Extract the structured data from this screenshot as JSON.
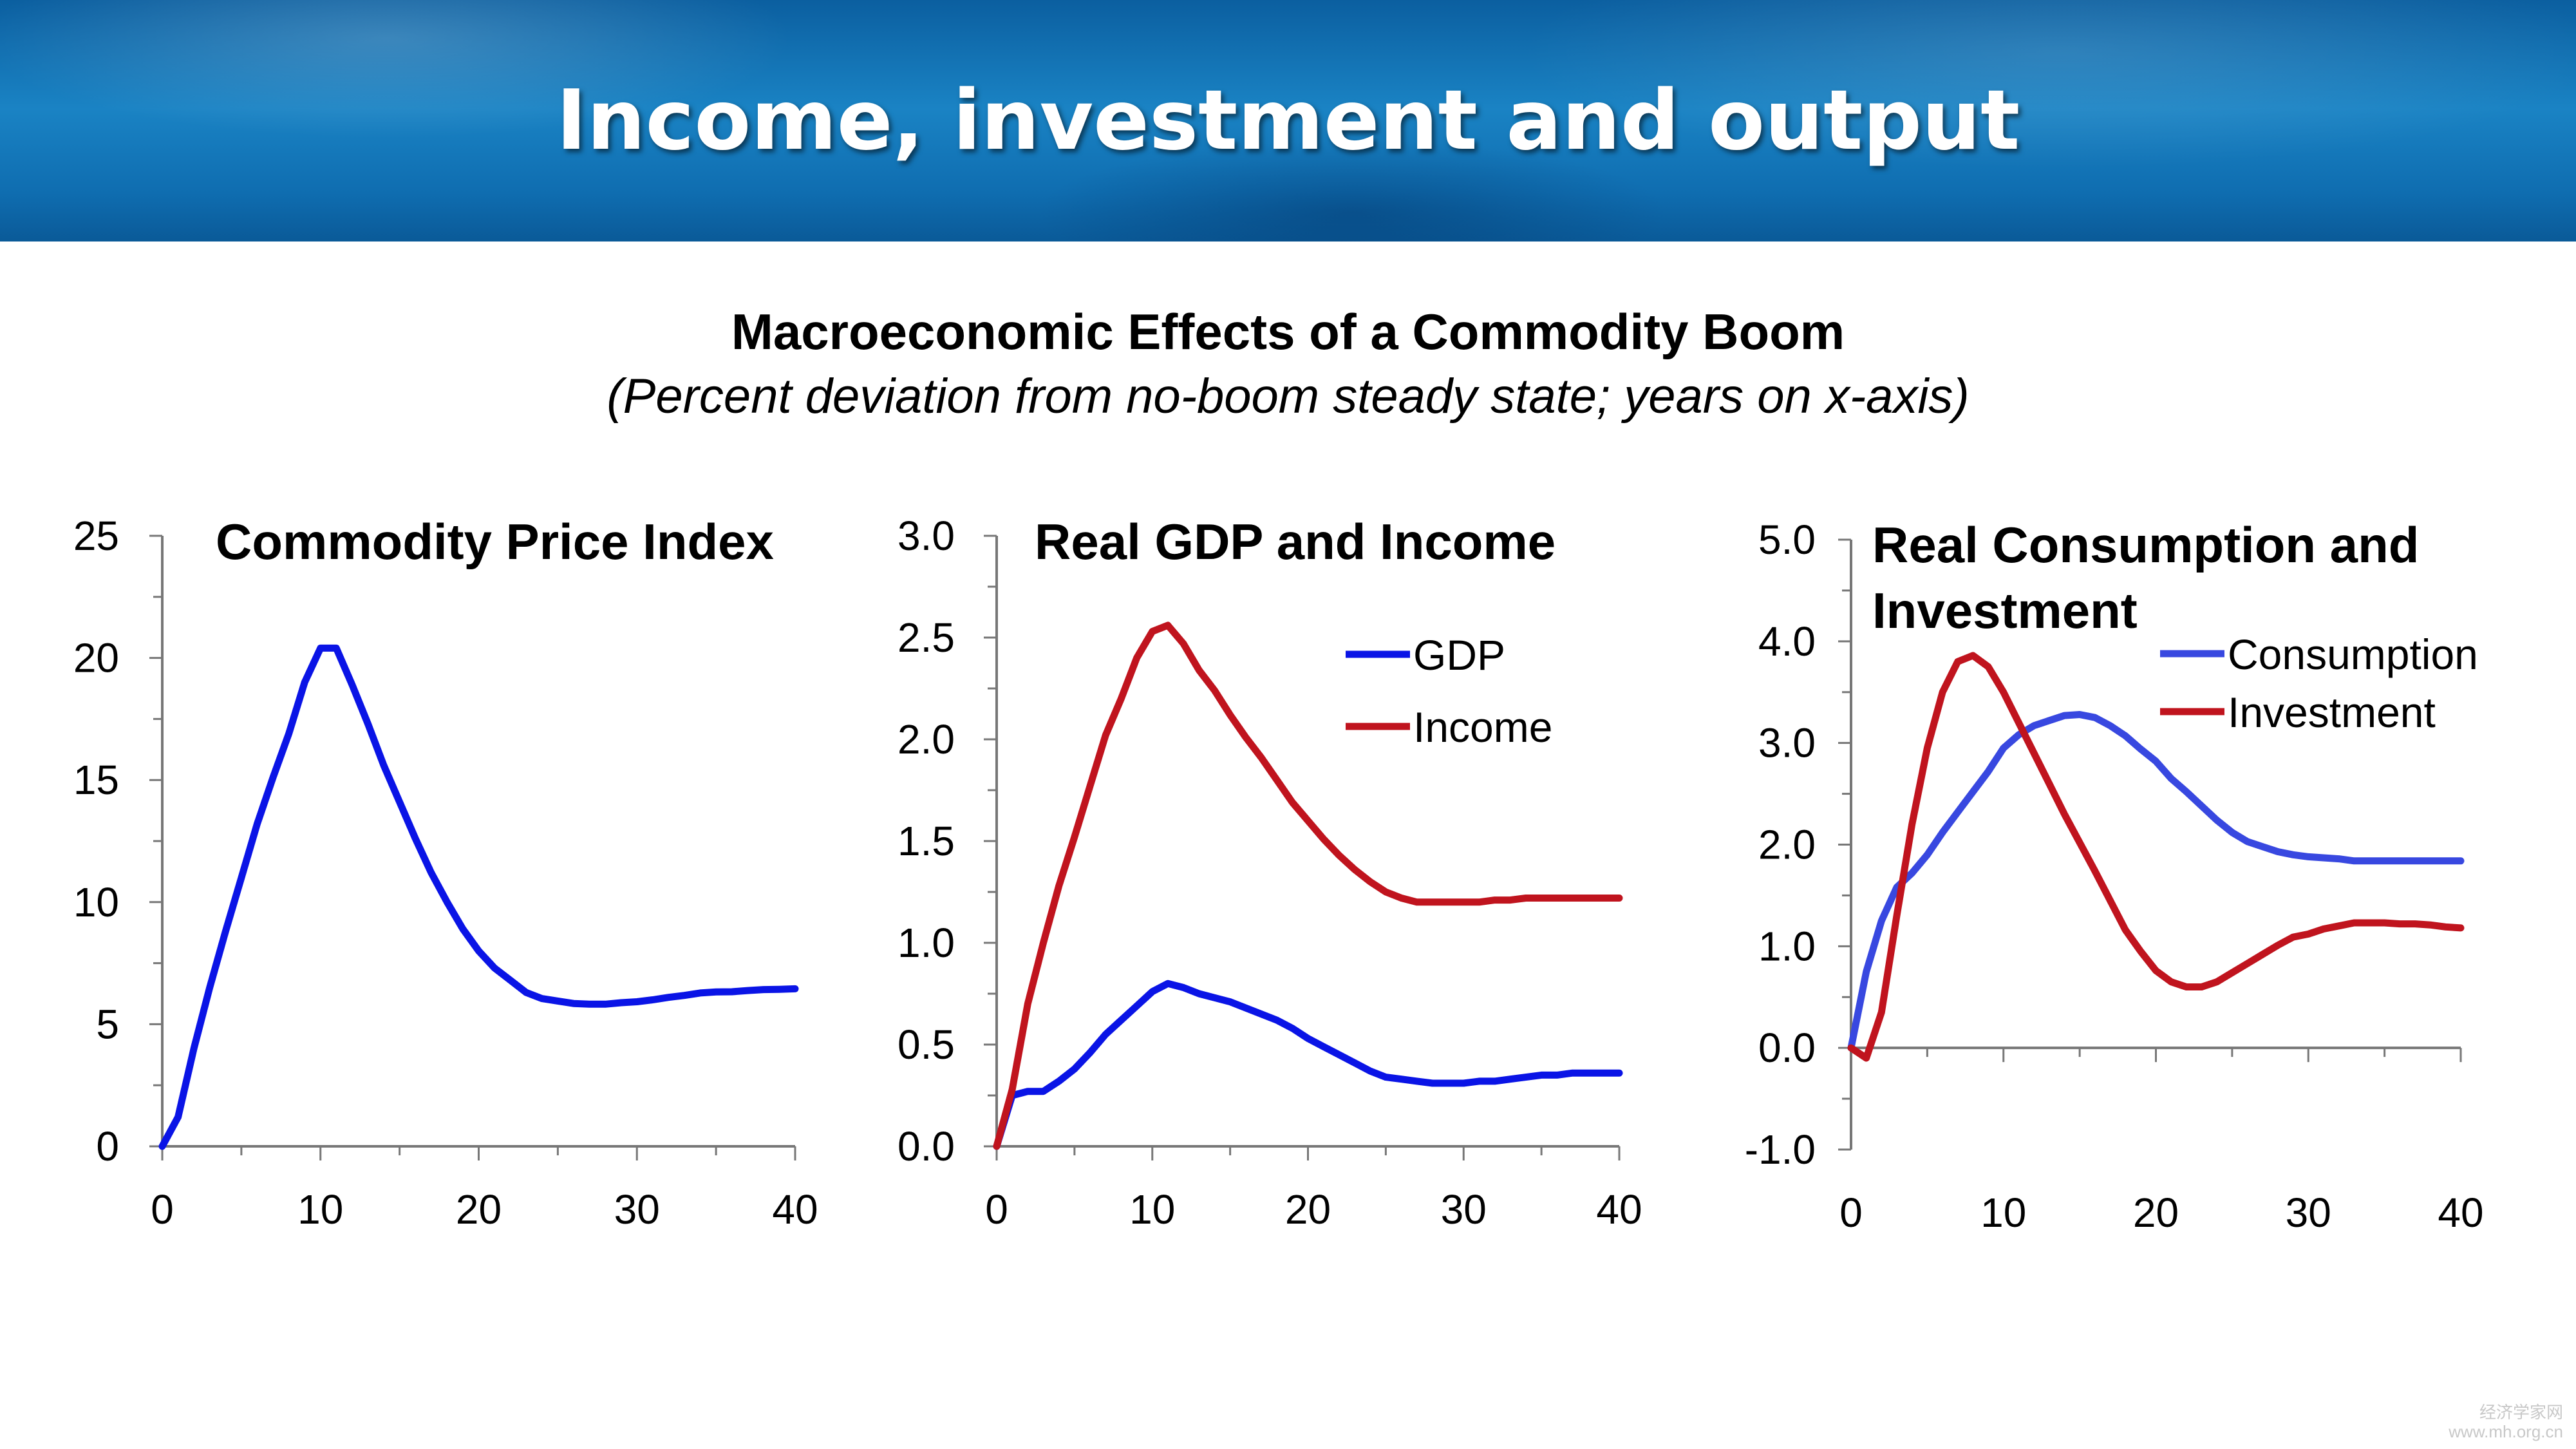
{
  "header": {
    "title": "Income, investment and output"
  },
  "figure": {
    "title": "Macroeconomic Effects of a Commodity Boom",
    "subtitle": "(Percent deviation from no-boom steady state; years on x-axis)"
  },
  "colors": {
    "banner": "#1a83c4",
    "blue": "#0a14e6",
    "red": "#c0141e",
    "axis": "#777777"
  },
  "watermark": {
    "line1": "经济学家网",
    "line2": "www.mh.org.cn"
  },
  "chart_data": [
    {
      "type": "line",
      "title": "Commodity Price Index",
      "xlim": [
        0,
        40
      ],
      "ylim": [
        0,
        25
      ],
      "xticks": [
        0,
        10,
        20,
        30,
        40
      ],
      "xtick_labels": [
        "0",
        "10",
        "20",
        "30",
        "40"
      ],
      "yticks": [
        0,
        5,
        10,
        15,
        20,
        25
      ],
      "ytick_labels": [
        "0",
        "5",
        "10",
        "15",
        "20",
        "25"
      ],
      "legend": null,
      "series": [
        {
          "color": "#0a14e6",
          "x": [
            0,
            1,
            2,
            3,
            4,
            5,
            6,
            7,
            8,
            9,
            10,
            11,
            12,
            13,
            14,
            15,
            16,
            17,
            18,
            19,
            20,
            21,
            22,
            23,
            24,
            25,
            26,
            27,
            28,
            29,
            30,
            31,
            32,
            33,
            34,
            35,
            36,
            37,
            38,
            39,
            40
          ],
          "y": [
            0,
            1.2,
            4,
            6.5,
            8.8,
            11,
            13.2,
            15.1,
            16.9,
            19,
            20.4,
            20.4,
            18.9,
            17.3,
            15.6,
            14.1,
            12.6,
            11.2,
            10,
            8.9,
            8,
            7.3,
            6.8,
            6.3,
            6.05,
            5.95,
            5.85,
            5.82,
            5.82,
            5.88,
            5.92,
            6,
            6.1,
            6.18,
            6.28,
            6.32,
            6.33,
            6.38,
            6.42,
            6.43,
            6.45
          ]
        }
      ]
    },
    {
      "type": "line",
      "title": "Real GDP and Income",
      "xlim": [
        0,
        40
      ],
      "ylim": [
        0,
        3
      ],
      "xticks": [
        0,
        10,
        20,
        30,
        40
      ],
      "xtick_labels": [
        "0",
        "10",
        "20",
        "30",
        "40"
      ],
      "yticks": [
        0,
        0.5,
        1,
        1.5,
        2,
        2.5,
        3
      ],
      "ytick_labels": [
        "0.0",
        "0.5",
        "1.0",
        "1.5",
        "2.0",
        "2.5",
        "3.0"
      ],
      "legend": "upper right",
      "series": [
        {
          "name": "GDP",
          "color": "#0a14e6",
          "x": [
            0,
            1,
            2,
            3,
            4,
            5,
            6,
            7,
            8,
            9,
            10,
            11,
            12,
            13,
            14,
            15,
            16,
            17,
            18,
            19,
            20,
            21,
            22,
            23,
            24,
            25,
            26,
            27,
            28,
            29,
            30,
            31,
            32,
            33,
            34,
            35,
            36,
            37,
            38,
            39,
            40
          ],
          "y": [
            0,
            0.25,
            0.27,
            0.27,
            0.32,
            0.38,
            0.46,
            0.55,
            0.62,
            0.69,
            0.76,
            0.8,
            0.78,
            0.75,
            0.73,
            0.71,
            0.68,
            0.65,
            0.62,
            0.58,
            0.53,
            0.49,
            0.45,
            0.41,
            0.37,
            0.34,
            0.33,
            0.32,
            0.31,
            0.31,
            0.31,
            0.32,
            0.32,
            0.33,
            0.34,
            0.35,
            0.35,
            0.36,
            0.36,
            0.36,
            0.36
          ]
        },
        {
          "name": "Income",
          "color": "#c0141e",
          "x": [
            0,
            1,
            2,
            3,
            4,
            5,
            6,
            7,
            8,
            9,
            10,
            11,
            12,
            13,
            14,
            15,
            16,
            17,
            18,
            19,
            20,
            21,
            22,
            23,
            24,
            25,
            26,
            27,
            28,
            29,
            30,
            31,
            32,
            33,
            34,
            35,
            36,
            37,
            38,
            39,
            40
          ],
          "y": [
            0,
            0.28,
            0.7,
            1,
            1.28,
            1.52,
            1.77,
            2.02,
            2.2,
            2.4,
            2.53,
            2.56,
            2.47,
            2.34,
            2.24,
            2.12,
            2.01,
            1.91,
            1.8,
            1.69,
            1.6,
            1.51,
            1.43,
            1.36,
            1.3,
            1.25,
            1.22,
            1.2,
            1.2,
            1.2,
            1.2,
            1.2,
            1.21,
            1.21,
            1.22,
            1.22,
            1.22,
            1.22,
            1.22,
            1.22,
            1.22
          ]
        }
      ]
    },
    {
      "type": "line",
      "title": "Real Consumption and Investment",
      "xlim": [
        0,
        40
      ],
      "ylim": [
        -1,
        5
      ],
      "xticks": [
        0,
        10,
        20,
        30,
        40
      ],
      "xtick_labels": [
        "0",
        "10",
        "20",
        "30",
        "40"
      ],
      "yticks": [
        -1,
        0,
        1,
        2,
        3,
        4,
        5
      ],
      "ytick_labels": [
        "-1.0",
        "0.0",
        "1.0",
        "2.0",
        "3.0",
        "4.0",
        "5.0"
      ],
      "legend": "upper right",
      "series": [
        {
          "name": "Consumption",
          "color": "#3848e0",
          "x": [
            0,
            1,
            2,
            3,
            4,
            5,
            6,
            7,
            8,
            9,
            10,
            11,
            12,
            13,
            14,
            15,
            16,
            17,
            18,
            19,
            20,
            21,
            22,
            23,
            24,
            25,
            26,
            27,
            28,
            29,
            30,
            31,
            32,
            33,
            34,
            35,
            36,
            37,
            38,
            39,
            40
          ],
          "y": [
            0,
            0.75,
            1.25,
            1.58,
            1.72,
            1.9,
            2.12,
            2.32,
            2.52,
            2.72,
            2.95,
            3.08,
            3.17,
            3.22,
            3.27,
            3.28,
            3.25,
            3.17,
            3.07,
            2.94,
            2.82,
            2.65,
            2.52,
            2.38,
            2.24,
            2.12,
            2.03,
            1.98,
            1.93,
            1.9,
            1.88,
            1.87,
            1.86,
            1.84,
            1.84,
            1.84,
            1.84,
            1.84,
            1.84,
            1.84,
            1.84
          ]
        },
        {
          "name": "Investment",
          "color": "#c0141e",
          "x": [
            0,
            1,
            2,
            3,
            4,
            5,
            6,
            7,
            8,
            9,
            10,
            11,
            12,
            13,
            14,
            15,
            16,
            17,
            18,
            19,
            20,
            21,
            22,
            23,
            24,
            25,
            26,
            27,
            28,
            29,
            30,
            31,
            32,
            33,
            34,
            35,
            36,
            37,
            38,
            39,
            40
          ],
          "y": [
            0,
            -0.1,
            0.35,
            1.3,
            2.2,
            2.95,
            3.5,
            3.8,
            3.86,
            3.75,
            3.5,
            3.2,
            2.9,
            2.6,
            2.3,
            2.02,
            1.74,
            1.45,
            1.16,
            0.95,
            0.76,
            0.65,
            0.6,
            0.6,
            0.65,
            0.74,
            0.83,
            0.92,
            1.01,
            1.09,
            1.12,
            1.17,
            1.2,
            1.23,
            1.23,
            1.23,
            1.22,
            1.22,
            1.21,
            1.19,
            1.18
          ]
        }
      ]
    }
  ]
}
